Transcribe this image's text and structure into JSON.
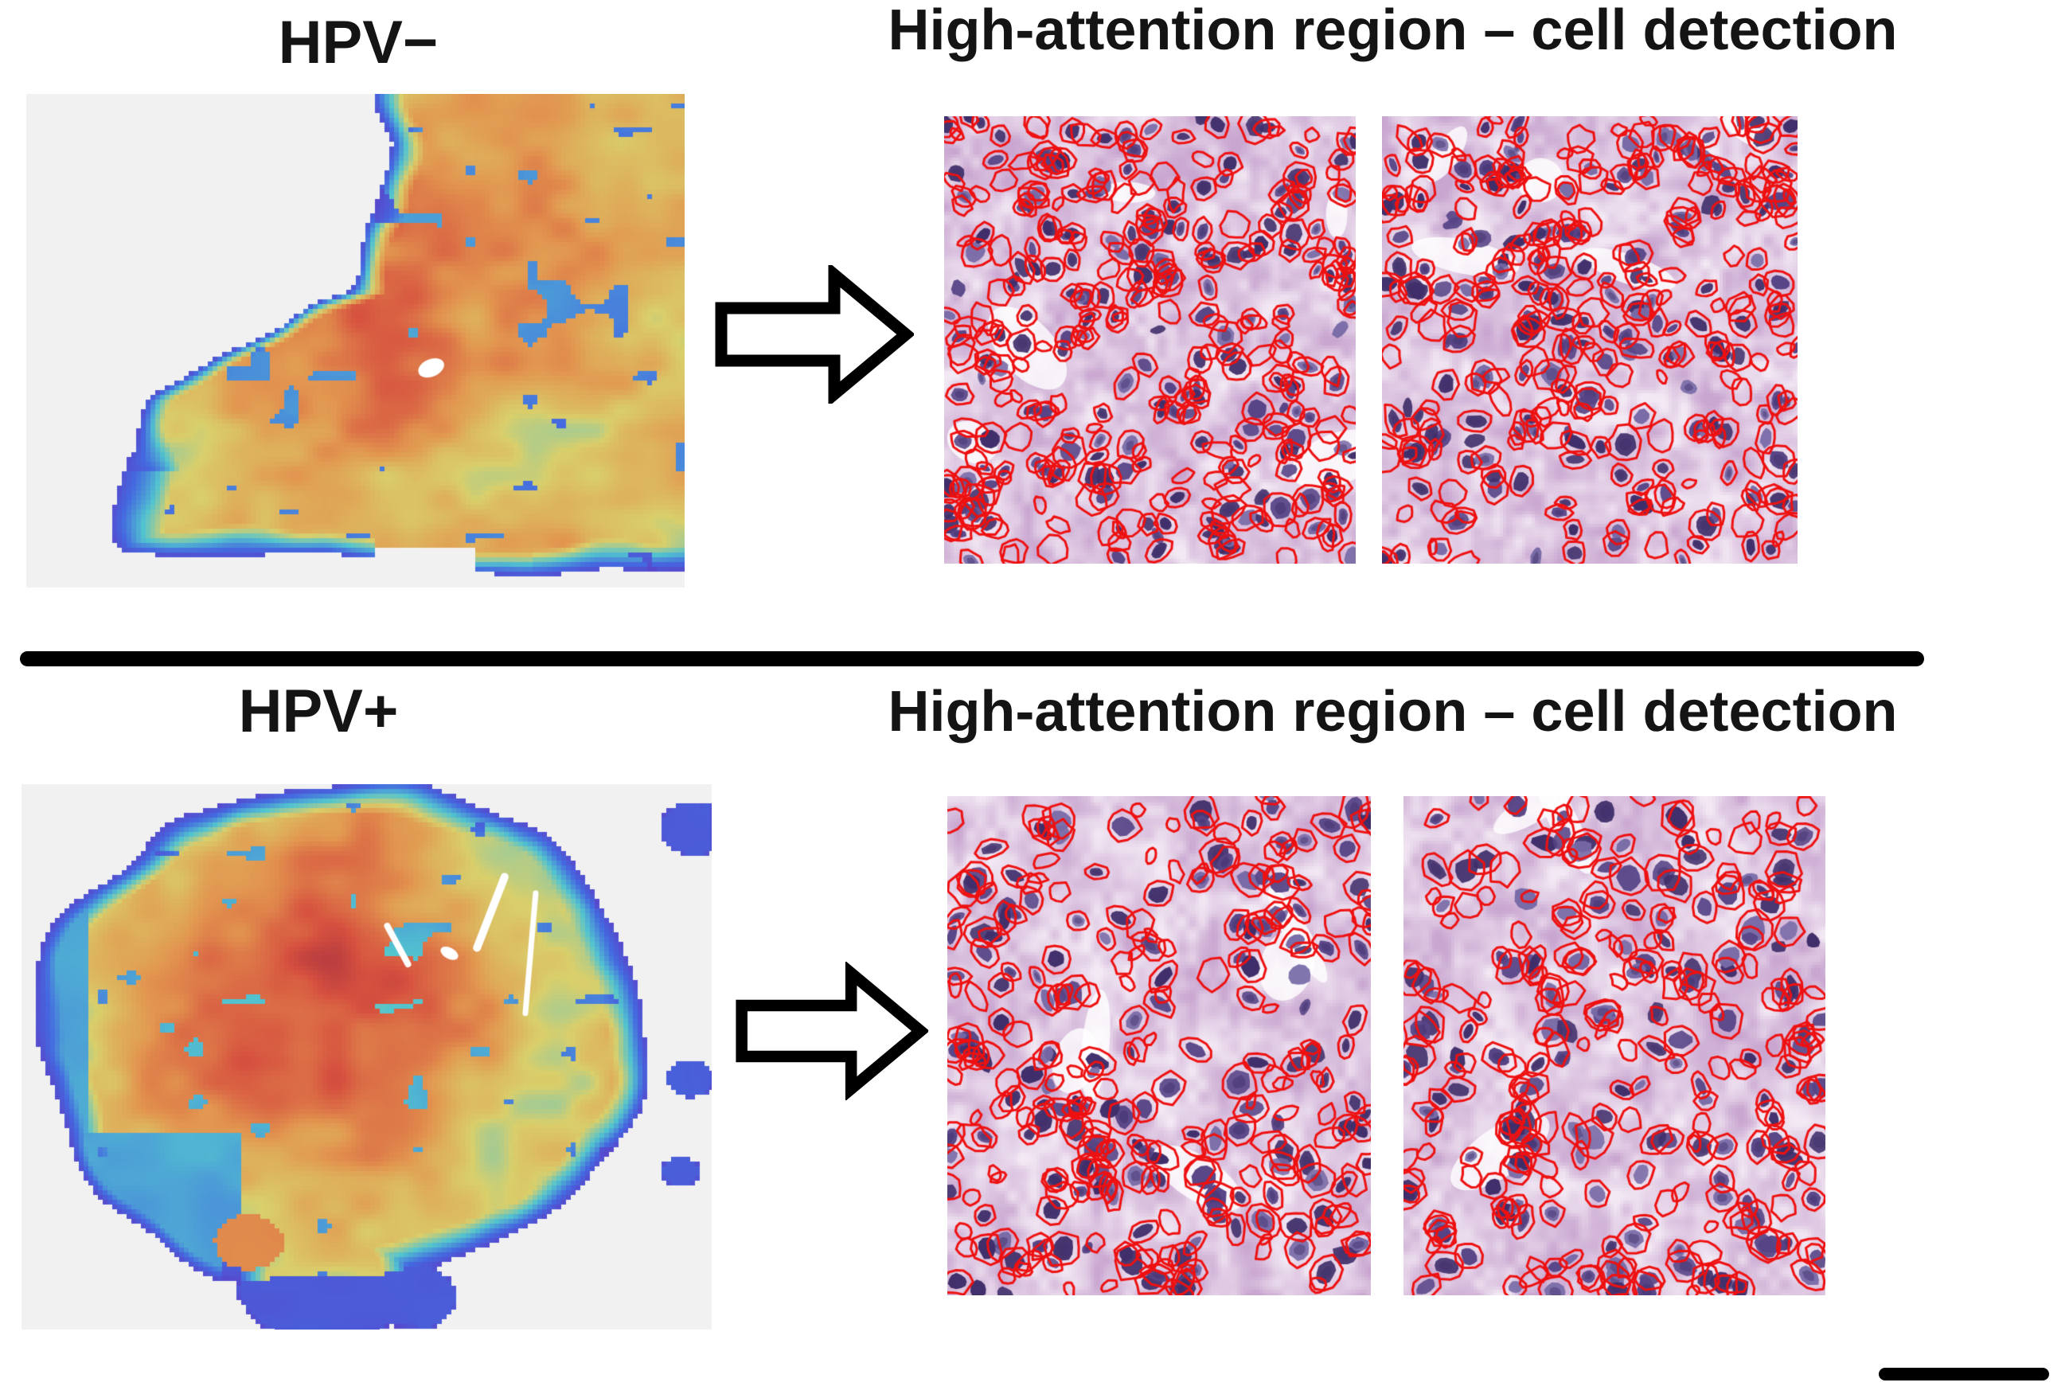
{
  "figure_type": "hpv-attention-cell-detection-figure",
  "sections": [
    {
      "id": "hpv-negative",
      "label": "HPV−",
      "title": "High-attention region – cell detection",
      "heatmap_name": "whole-slide attention heatmap (HPV−)",
      "patch_count": 2
    },
    {
      "id": "hpv-positive",
      "label": "HPV+",
      "title": "High-attention region – cell detection",
      "heatmap_name": "whole-slide attention heatmap (HPV+)",
      "patch_count": 2
    }
  ],
  "icons": {
    "workflow_arrow": "block-arrow-right"
  },
  "colors": {
    "text": "#141414",
    "divider": "#000000",
    "scale_bar": "#000000",
    "arrow_fill": "#ffffff",
    "arrow_outline": "#000000",
    "detection_outline": "#ee1111",
    "heatmap_panel_background": "#f2f1f2",
    "heatmap_palette": [
      "#5b43c8",
      "#4468e0",
      "#52c4cf",
      "#d9cf6b",
      "#e2954f",
      "#d6503f",
      "#a93340"
    ],
    "histology_light": "#f3e9f4",
    "histology_dark": "#c9a6d0",
    "nucleus_dark": "#3f2e6a",
    "nucleus_mid": "#564486",
    "nucleus_light": "#776aa6"
  }
}
